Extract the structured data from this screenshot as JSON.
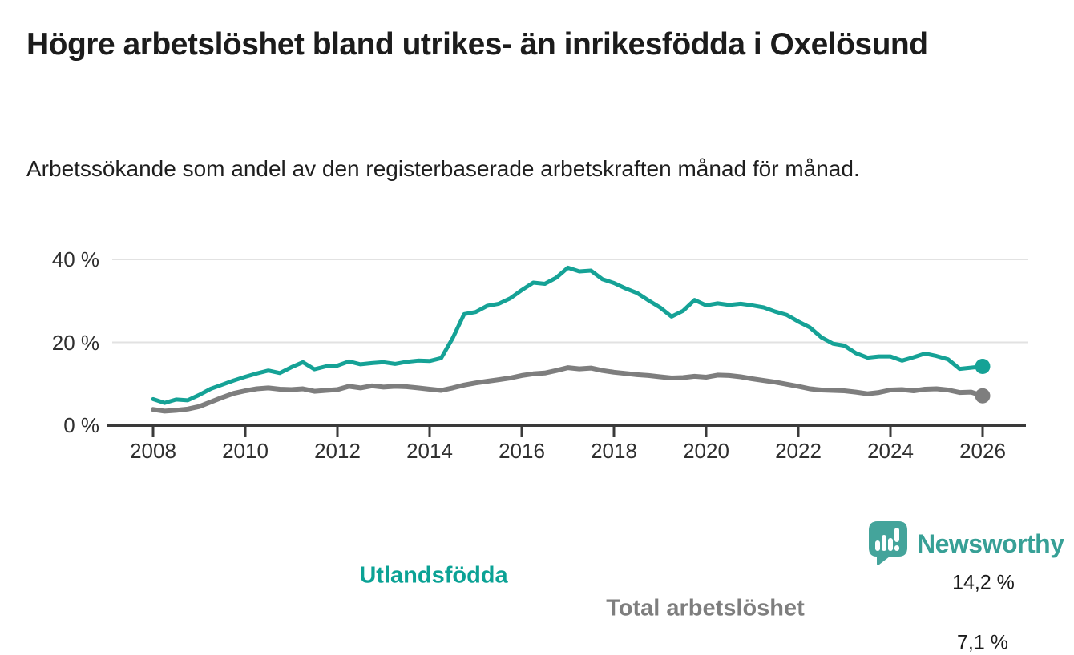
{
  "title": "Högre arbetslöshet bland utrikes- än inrikesfödda i Oxelösund",
  "subtitle": "Arbetssökande som andel av den registerbaserade arbetskraften månad för månad.",
  "branding": {
    "logo_text": "Newsworthy",
    "logo_icon": "bar-chart-speech-bubble-icon",
    "brand_color": "#37a096"
  },
  "colors": {
    "utlandsfodda": "#15a296",
    "total_arbetsloshet": "#7e7e7e",
    "axis": "#3a3a3a",
    "grid": "#e2e2e2",
    "tick_text": "#2f2f2f",
    "value_text": "#1a1a1a"
  },
  "chart_data": {
    "type": "line",
    "title": "Högre arbetslöshet bland utrikes- än inrikesfödda i Oxelösund",
    "subtitle": "Arbetssökande som andel av den registerbaserade arbetskraften månad för månad.",
    "xlabel": "",
    "ylabel": "",
    "xlim": [
      2007.1,
      2027.0
    ],
    "ylim": [
      0,
      43
    ],
    "grid": "horizontal",
    "legend": "inline-labels",
    "y_ticks": [
      {
        "value": 0,
        "label": "0 %"
      },
      {
        "value": 20,
        "label": "20 %"
      },
      {
        "value": 40,
        "label": "40 %"
      }
    ],
    "x_ticks": [
      {
        "value": 2008,
        "label": "2008"
      },
      {
        "value": 2010,
        "label": "2010"
      },
      {
        "value": 2012,
        "label": "2012"
      },
      {
        "value": 2014,
        "label": "2014"
      },
      {
        "value": 2016,
        "label": "2016"
      },
      {
        "value": 2018,
        "label": "2018"
      },
      {
        "value": 2020,
        "label": "2020"
      },
      {
        "value": 2022,
        "label": "2022"
      },
      {
        "value": 2024,
        "label": "2024"
      },
      {
        "value": 2026,
        "label": "2026"
      }
    ],
    "x": [
      2008.0,
      2008.25,
      2008.5,
      2008.75,
      2009.0,
      2009.25,
      2009.5,
      2009.75,
      2010.0,
      2010.25,
      2010.5,
      2010.75,
      2011.0,
      2011.25,
      2011.5,
      2011.75,
      2012.0,
      2012.25,
      2012.5,
      2012.75,
      2013.0,
      2013.25,
      2013.5,
      2013.75,
      2014.0,
      2014.25,
      2014.5,
      2014.75,
      2015.0,
      2015.25,
      2015.5,
      2015.75,
      2016.0,
      2016.25,
      2016.5,
      2016.75,
      2017.0,
      2017.25,
      2017.5,
      2017.75,
      2018.0,
      2018.25,
      2018.5,
      2018.75,
      2019.0,
      2019.25,
      2019.5,
      2019.75,
      2020.0,
      2020.25,
      2020.5,
      2020.75,
      2021.0,
      2021.25,
      2021.5,
      2021.75,
      2022.0,
      2022.25,
      2022.5,
      2022.75,
      2023.0,
      2023.25,
      2023.5,
      2023.75,
      2024.0,
      2024.25,
      2024.5,
      2024.75,
      2025.0,
      2025.25,
      2025.5,
      2025.75,
      2026.0
    ],
    "series": [
      {
        "name": "Utlandsfödda",
        "color": "#15a296",
        "end_label": "14,2 %",
        "end_value": 14.2,
        "values": [
          6.3,
          5.4,
          6.2,
          6.0,
          7.3,
          8.8,
          9.8,
          10.8,
          11.7,
          12.5,
          13.2,
          12.6,
          14.0,
          15.2,
          13.5,
          14.2,
          14.4,
          15.4,
          14.7,
          15.0,
          15.2,
          14.8,
          15.3,
          15.6,
          15.5,
          16.2,
          21.0,
          26.8,
          27.3,
          28.8,
          29.3,
          30.6,
          32.6,
          34.4,
          34.1,
          35.6,
          38.0,
          37.1,
          37.3,
          35.2,
          34.3,
          33.0,
          31.9,
          30.1,
          28.4,
          26.2,
          27.6,
          30.2,
          28.9,
          29.4,
          29.0,
          29.3,
          28.9,
          28.4,
          27.4,
          26.6,
          25.0,
          23.6,
          21.2,
          19.7,
          19.2,
          17.4,
          16.3,
          16.6,
          16.6,
          15.6,
          16.4,
          17.3,
          16.7,
          15.9,
          13.6,
          13.9,
          14.2
        ]
      },
      {
        "name": "Total arbetslöshet",
        "color": "#7e7e7e",
        "end_label": "7,1 %",
        "end_value": 7.1,
        "values": [
          3.8,
          3.4,
          3.6,
          3.9,
          4.5,
          5.6,
          6.7,
          7.7,
          8.3,
          8.8,
          9.0,
          8.7,
          8.6,
          8.8,
          8.2,
          8.4,
          8.6,
          9.4,
          9.0,
          9.5,
          9.2,
          9.4,
          9.3,
          9.0,
          8.7,
          8.4,
          9.0,
          9.7,
          10.2,
          10.6,
          11.0,
          11.4,
          12.0,
          12.4,
          12.6,
          13.2,
          13.9,
          13.6,
          13.8,
          13.2,
          12.8,
          12.5,
          12.2,
          12.0,
          11.7,
          11.4,
          11.5,
          11.8,
          11.6,
          12.1,
          12.0,
          11.7,
          11.2,
          10.8,
          10.4,
          9.9,
          9.4,
          8.8,
          8.5,
          8.4,
          8.3,
          8.0,
          7.6,
          7.9,
          8.5,
          8.6,
          8.3,
          8.7,
          8.8,
          8.5,
          7.9,
          8.0,
          7.1
        ]
      }
    ]
  }
}
